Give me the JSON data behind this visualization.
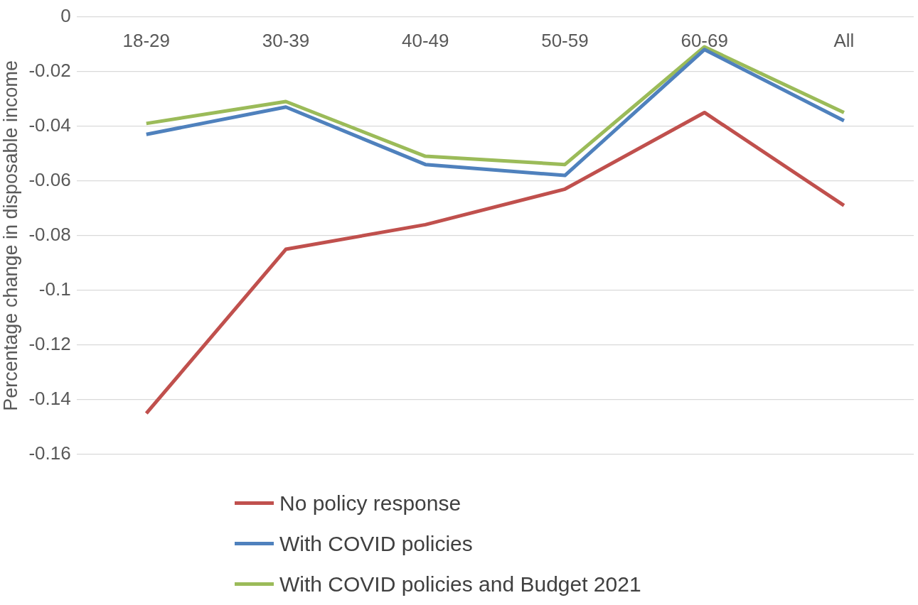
{
  "chart_data": {
    "type": "line",
    "ylabel": "Percentage change in disposable income",
    "categories": [
      "18-29",
      "30-39",
      "40-49",
      "50-59",
      "60-69",
      "All"
    ],
    "series": [
      {
        "name": "No policy response",
        "color": "#c0504d",
        "values": [
          -0.145,
          -0.085,
          -0.076,
          -0.063,
          -0.035,
          -0.069
        ]
      },
      {
        "name": "With COVID policies",
        "color": "#4f81bd",
        "values": [
          -0.043,
          -0.033,
          -0.054,
          -0.058,
          -0.012,
          -0.038
        ]
      },
      {
        "name": "With COVID policies and Budget 2021",
        "color": "#9bbb59",
        "values": [
          -0.039,
          -0.031,
          -0.051,
          -0.054,
          -0.011,
          -0.035
        ]
      }
    ],
    "ylim": [
      -0.16,
      0
    ],
    "yticks": [
      0,
      -0.02,
      -0.04,
      -0.06,
      -0.08,
      -0.1,
      -0.12,
      -0.14,
      -0.16
    ],
    "grid": "y",
    "legend": "bottom",
    "marker": "none",
    "line_style": "solid"
  }
}
